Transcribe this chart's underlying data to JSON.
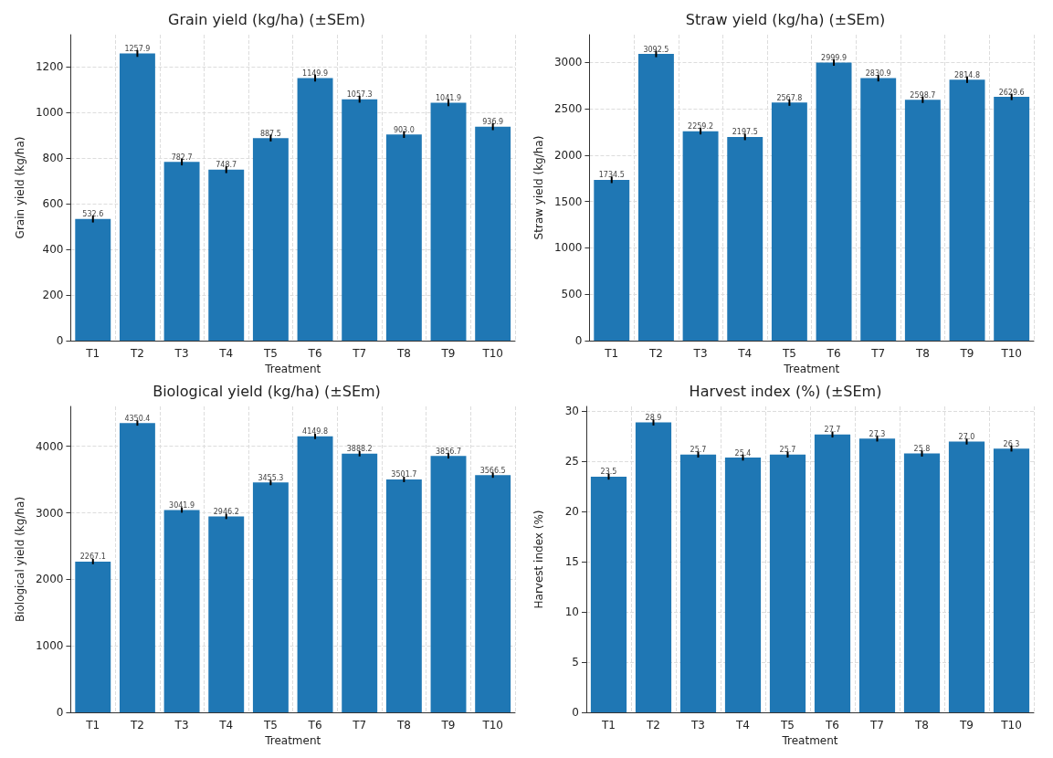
{
  "chart_data": [
    {
      "type": "bar",
      "title": "Grain yield (kg/ha) (±SEm)",
      "xlabel": "Treatment",
      "ylabel": "Grain yield (kg/ha)",
      "categories": [
        "T1",
        "T2",
        "T3",
        "T4",
        "T5",
        "T6",
        "T7",
        "T8",
        "T9",
        "T10"
      ],
      "values": [
        532.6,
        1257.9,
        782.7,
        748.7,
        887.5,
        1149.9,
        1057.3,
        903.0,
        1041.9,
        936.9
      ],
      "value_labels": [
        "532.6",
        "1257.9",
        "782.7",
        "748.7",
        "887.5",
        "1149.9",
        "1057.3",
        "903.0",
        "1041.9",
        "936.9"
      ],
      "errors": [
        15,
        15,
        15,
        15,
        15,
        15,
        15,
        15,
        15,
        15
      ],
      "color": "#1f77b4",
      "ylim": [
        0,
        1340
      ],
      "yticks": [
        0,
        200,
        400,
        600,
        800,
        1000,
        1200
      ],
      "grid": true
    },
    {
      "type": "bar",
      "title": "Straw yield (kg/ha) (±SEm)",
      "xlabel": "Treatment",
      "ylabel": "Straw yield (kg/ha)",
      "categories": [
        "T1",
        "T2",
        "T3",
        "T4",
        "T5",
        "T6",
        "T7",
        "T8",
        "T9",
        "T10"
      ],
      "values": [
        1734.5,
        3092.5,
        2259.2,
        2197.5,
        2567.8,
        2999.9,
        2830.9,
        2598.7,
        2814.8,
        2629.6
      ],
      "value_labels": [
        "1734.5",
        "3092.5",
        "2259.2",
        "2197.5",
        "2567.8",
        "2999.9",
        "2830.9",
        "2598.7",
        "2814.8",
        "2629.6"
      ],
      "errors": [
        35,
        35,
        35,
        35,
        35,
        35,
        35,
        35,
        35,
        35
      ],
      "color": "#1f77b4",
      "ylim": [
        0,
        3300
      ],
      "yticks": [
        0,
        500,
        1000,
        1500,
        2000,
        2500,
        3000
      ],
      "grid": true
    },
    {
      "type": "bar",
      "title": "Biological yield (kg/ha) (±SEm)",
      "xlabel": "Treatment",
      "ylabel": "Biological yield (kg/ha)",
      "categories": [
        "T1",
        "T2",
        "T3",
        "T4",
        "T5",
        "T6",
        "T7",
        "T8",
        "T9",
        "T10"
      ],
      "values": [
        2267.1,
        4350.4,
        3041.9,
        2946.2,
        3455.3,
        4149.8,
        3888.2,
        3501.7,
        3856.7,
        3566.5
      ],
      "value_labels": [
        "2267.1",
        "4350.4",
        "3041.9",
        "2946.2",
        "3455.3",
        "4149.8",
        "3888.2",
        "3501.7",
        "3856.7",
        "3566.5"
      ],
      "errors": [
        40,
        40,
        40,
        40,
        40,
        40,
        40,
        40,
        40,
        40
      ],
      "color": "#1f77b4",
      "ylim": [
        0,
        4600
      ],
      "yticks": [
        0,
        1000,
        2000,
        3000,
        4000
      ],
      "grid": true
    },
    {
      "type": "bar",
      "title": "Harvest index (%) (±SEm)",
      "xlabel": "Treatment",
      "ylabel": "Harvest index (%)",
      "categories": [
        "T1",
        "T2",
        "T3",
        "T4",
        "T5",
        "T6",
        "T7",
        "T8",
        "T9",
        "T10"
      ],
      "values": [
        23.5,
        28.9,
        25.7,
        25.4,
        25.7,
        27.7,
        27.3,
        25.8,
        27.0,
        26.3
      ],
      "value_labels": [
        "23.5",
        "28.9",
        "25.7",
        "25.4",
        "25.7",
        "27.7",
        "27.3",
        "25.8",
        "27.0",
        "26.3"
      ],
      "errors": [
        0.3,
        0.3,
        0.3,
        0.3,
        0.3,
        0.3,
        0.3,
        0.3,
        0.3,
        0.3
      ],
      "color": "#1f77b4",
      "ylim": [
        0,
        30.5
      ],
      "yticks": [
        0,
        5,
        10,
        15,
        20,
        25,
        30
      ],
      "grid": true
    }
  ]
}
